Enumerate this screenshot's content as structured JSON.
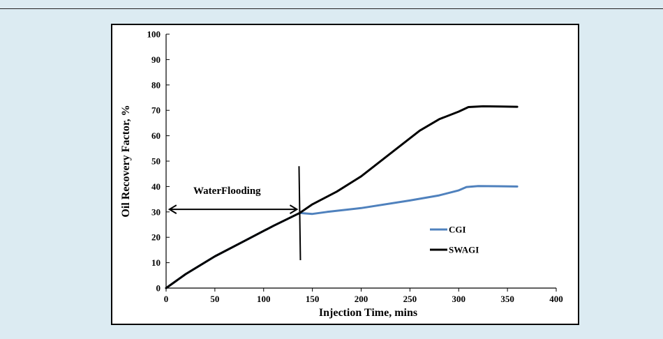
{
  "chart_data": {
    "type": "line",
    "title": "",
    "xlabel": "Injection Time, mins",
    "ylabel": "Oil Recovery Factor, %",
    "xlim": [
      0,
      400
    ],
    "ylim": [
      0,
      100
    ],
    "x_ticks": [
      0,
      50,
      100,
      150,
      200,
      250,
      300,
      350,
      400
    ],
    "y_ticks": [
      0,
      10,
      20,
      30,
      40,
      50,
      60,
      70,
      80,
      90,
      100
    ],
    "grid": false,
    "legend_position": "right",
    "series": [
      {
        "name": "CGI",
        "color": "#4f81bd",
        "points": [
          [
            0,
            0
          ],
          [
            20,
            5.5
          ],
          [
            50,
            12.5
          ],
          [
            80,
            18.5
          ],
          [
            110,
            24.5
          ],
          [
            137,
            29.6
          ],
          [
            143,
            29.4
          ],
          [
            150,
            29.2
          ],
          [
            165,
            30
          ],
          [
            200,
            31.5
          ],
          [
            250,
            34.5
          ],
          [
            280,
            36.5
          ],
          [
            300,
            38.5
          ],
          [
            308,
            39.8
          ],
          [
            320,
            40.2
          ],
          [
            340,
            40.1
          ],
          [
            360,
            40
          ]
        ]
      },
      {
        "name": "SWAGI",
        "color": "#000000",
        "points": [
          [
            0,
            0
          ],
          [
            20,
            5.5
          ],
          [
            50,
            12.5
          ],
          [
            80,
            18.5
          ],
          [
            110,
            24.5
          ],
          [
            137,
            29.6
          ],
          [
            150,
            33
          ],
          [
            175,
            38
          ],
          [
            200,
            44
          ],
          [
            230,
            53
          ],
          [
            260,
            62
          ],
          [
            280,
            66.5
          ],
          [
            300,
            69.5
          ],
          [
            310,
            71.3
          ],
          [
            325,
            71.6
          ],
          [
            345,
            71.5
          ],
          [
            360,
            71.4
          ]
        ]
      }
    ],
    "annotations": [
      {
        "text": "WaterFlooding",
        "arrow": {
          "from_x": 2,
          "to_x": 137,
          "y": 31
        }
      }
    ],
    "divider": {
      "x": 137,
      "y_from": 11,
      "y_to": 48
    }
  }
}
